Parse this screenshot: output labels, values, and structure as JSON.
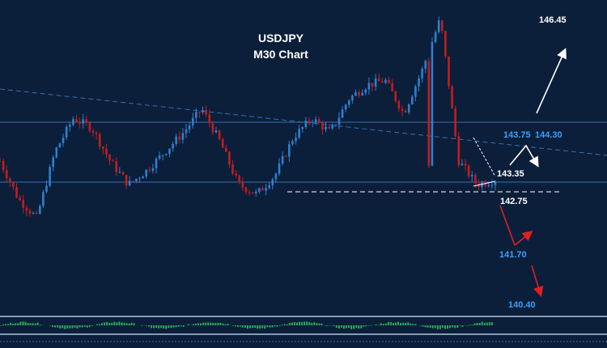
{
  "chart_data": {
    "type": "candlestick",
    "title": "USDJPY",
    "subtitle": "M30 Chart",
    "colors": {
      "background": "#0b1f3a",
      "bull": "#2f7fd0",
      "bear": "#c41d1d",
      "line": "#3a6fb0",
      "white": "#ffffff",
      "blue_label": "#3aa0ff",
      "red_arrow": "#e02020",
      "osc_green": "#2faa5a"
    },
    "grid": false,
    "levels": {
      "horizontal_resistance": 144.3,
      "horizontal_support": 143.35,
      "dashed_support": 142.75
    },
    "labels": [
      {
        "text": "146.45",
        "color": "white"
      },
      {
        "text": "143.75",
        "color": "blue"
      },
      {
        "text": "144.30",
        "color": "blue"
      },
      {
        "text": "143.35",
        "color": "white"
      },
      {
        "text": "142.75",
        "color": "white"
      },
      {
        "text": "141.70",
        "color": "blue"
      },
      {
        "text": "140.40",
        "color": "blue"
      }
    ],
    "price_path": [
      143.4,
      142.6,
      142.2,
      143.6,
      144.3,
      144.1,
      143.4,
      142.9,
      143.2,
      143.6,
      144.0,
      144.5,
      143.8,
      142.9,
      142.7,
      143.1,
      143.9,
      144.3,
      144.0,
      144.7,
      145.0,
      145.1,
      144.4,
      145.3,
      146.4,
      143.4,
      142.9,
      143.0
    ]
  }
}
